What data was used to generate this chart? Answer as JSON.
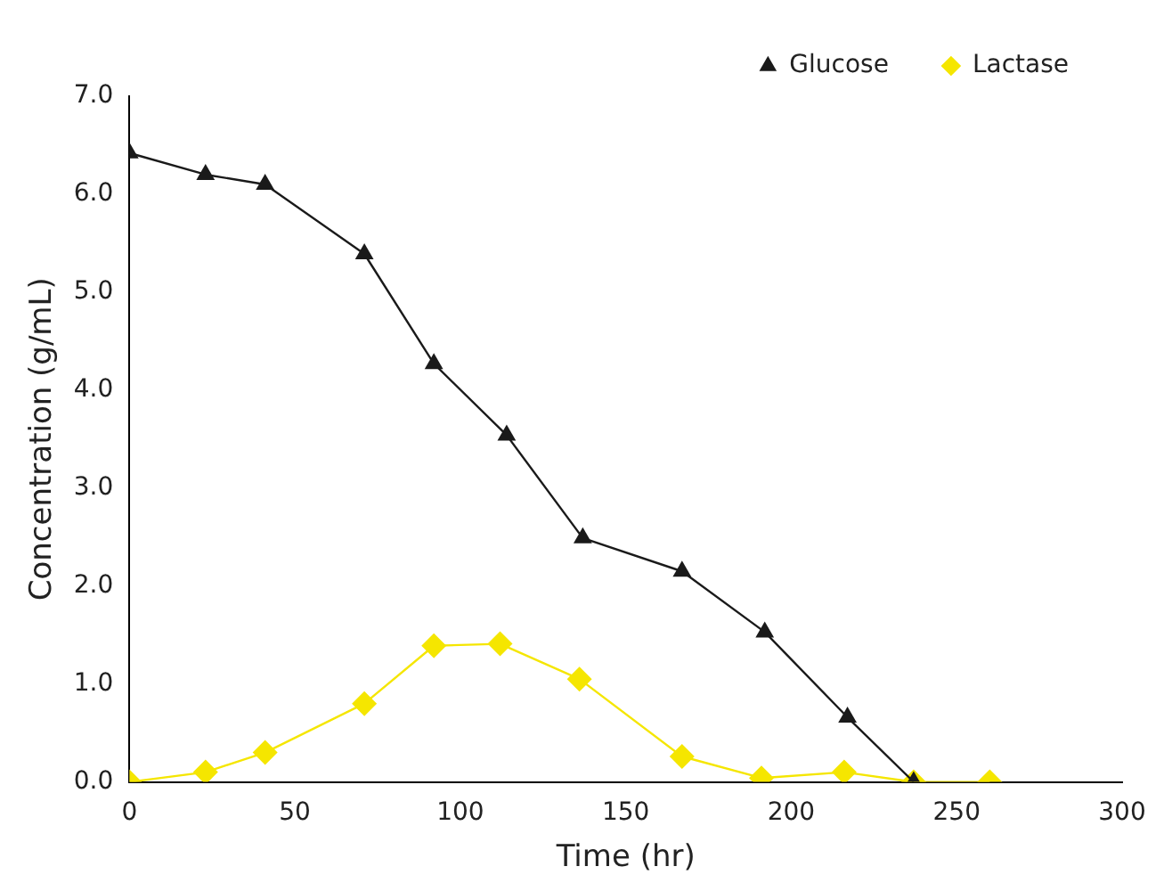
{
  "chart_data": {
    "type": "line",
    "xlabel": "Time (hr)",
    "ylabel": "Concentration (g/mL)",
    "xlim": [
      0,
      300
    ],
    "xticks": [
      0,
      50,
      100,
      150,
      200,
      250,
      300
    ],
    "ylim": [
      0,
      7
    ],
    "yticks": [
      {
        "value": 0,
        "label": "0.0"
      },
      {
        "value": 1,
        "label": "1.0"
      },
      {
        "value": 2,
        "label": "2.0"
      },
      {
        "value": 3,
        "label": "3.0"
      },
      {
        "value": 4,
        "label": "4.0"
      },
      {
        "value": 5,
        "label": "5.0"
      },
      {
        "value": 6,
        "label": "6.0"
      },
      {
        "value": 7,
        "label": "7.0"
      }
    ],
    "grid": false,
    "legend": "top right",
    "line_style": "solid",
    "series": [
      {
        "name": "Glucose",
        "color": "#1a1a1a",
        "marker": "triangle",
        "x": [
          0,
          23,
          41,
          71,
          92,
          114,
          137,
          167,
          192,
          217,
          237
        ],
        "values": [
          6.42,
          6.2,
          6.1,
          5.39,
          4.27,
          3.54,
          2.49,
          2.15,
          1.53,
          0.66,
          0
        ]
      },
      {
        "name": "Lactase",
        "color": "#f5e600",
        "marker": "diamond",
        "x": [
          0,
          23,
          41,
          71,
          92,
          112,
          136,
          167,
          191,
          216,
          237,
          260
        ],
        "values": [
          0,
          0.1,
          0.3,
          0.8,
          1.39,
          1.41,
          1.05,
          0.26,
          0.04,
          0.1,
          0,
          0
        ]
      }
    ]
  }
}
